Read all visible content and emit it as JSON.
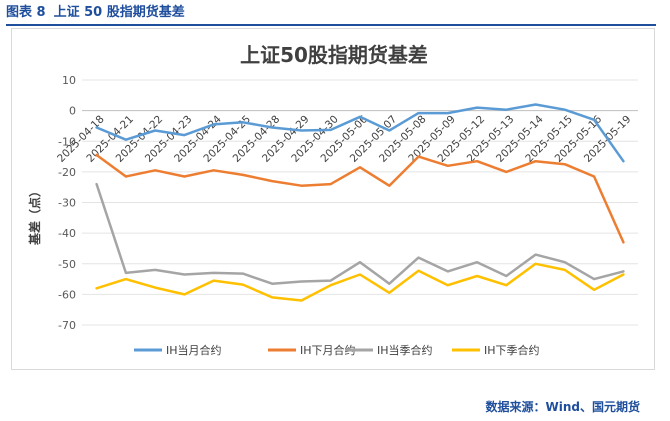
{
  "figure_label": "图表 8",
  "figure_title": "上证 50 股指期货基差",
  "source_text": "数据来源：Wind、国元期货",
  "chart_data": {
    "type": "line",
    "title": "上证50股指期货基差",
    "xlabel": "",
    "ylabel": "基差（点）",
    "ylim": [
      -70,
      10
    ],
    "yticks": [
      10,
      0,
      -10,
      -20,
      -30,
      -40,
      -50,
      -60,
      -70
    ],
    "grid": true,
    "legend_position": "bottom",
    "categories": [
      "2025-04-18",
      "2025-04-21",
      "2025-04-22",
      "2025-04-23",
      "2025-04-24",
      "2025-04-25",
      "2025-04-28",
      "2025-04-29",
      "2025-04-30",
      "2025-05-06",
      "2025-05-07",
      "2025-05-08",
      "2025-05-09",
      "2025-05-12",
      "2025-05-13",
      "2025-05-14",
      "2025-05-15",
      "2025-05-16",
      "2025-05-19"
    ],
    "series": [
      {
        "name": "IH当月合约",
        "color": "#5b9bd5",
        "values": [
          -5.5,
          -9.5,
          -6.5,
          -8,
          -4.5,
          -3.8,
          -5.5,
          -6.5,
          -6.3,
          -2,
          -6.5,
          -0.8,
          -0.8,
          1,
          0.3,
          2,
          0.3,
          -3,
          -16.5
        ]
      },
      {
        "name": "IH下月合约",
        "color": "#ed7d31",
        "values": [
          -14.5,
          -21.5,
          -19.5,
          -21.5,
          -19.5,
          -21,
          -23,
          -24.5,
          -24,
          -18.5,
          -24.5,
          -15,
          -18,
          -16.5,
          -20,
          -16.5,
          -17.5,
          -21.5,
          -43
        ]
      },
      {
        "name": "IH当季合约",
        "color": "#a5a5a5",
        "values": [
          -24,
          -53,
          -52,
          -53.5,
          -53,
          -53.2,
          -56.5,
          -55.8,
          -55.5,
          -49.5,
          -56.5,
          -48,
          -52.5,
          -49.5,
          -54,
          -47,
          -49.5,
          -55,
          -52.5
        ]
      },
      {
        "name": "IH下季合约",
        "color": "#ffc000",
        "values": [
          -58,
          -55,
          -57.8,
          -60,
          -55.5,
          -56.8,
          -61,
          -62,
          -57,
          -53.5,
          -59.5,
          -52.3,
          -57,
          -54,
          -57,
          -50,
          -52,
          -58.5,
          -53.5
        ]
      }
    ]
  }
}
